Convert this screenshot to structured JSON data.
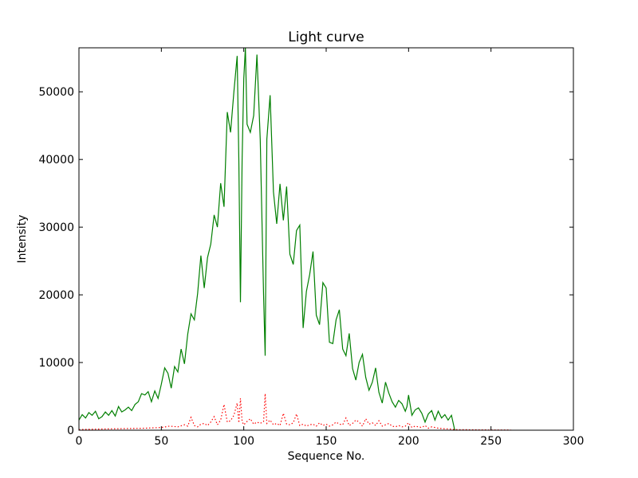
{
  "chart_data": {
    "type": "line",
    "title": "Light curve",
    "xlabel": "Sequence No.",
    "ylabel": "Intensity",
    "xlim": [
      0,
      300
    ],
    "ylim": [
      0,
      56500
    ],
    "xticks": [
      "0",
      "50",
      "100",
      "150",
      "200",
      "250",
      "300"
    ],
    "yticks": [
      "0",
      "10000",
      "20000",
      "30000",
      "40000",
      "50000"
    ],
    "grid": false,
    "legend": "none",
    "series": [
      {
        "color": "#007f00",
        "style": "solid",
        "x": [
          0,
          2,
          4,
          6,
          8,
          10,
          12,
          14,
          16,
          18,
          20,
          22,
          24,
          26,
          28,
          30,
          32,
          34,
          36,
          38,
          40,
          42,
          44,
          46,
          48,
          50,
          52,
          54,
          56,
          58,
          60,
          62,
          64,
          66,
          68,
          70,
          72,
          74,
          76,
          78,
          80,
          82,
          84,
          86,
          88,
          90,
          92,
          94,
          96,
          97,
          98,
          99,
          100,
          101,
          102,
          104,
          106,
          108,
          110,
          112,
          113,
          114,
          116,
          118,
          120,
          122,
          124,
          126,
          128,
          130,
          132,
          134,
          136,
          138,
          140,
          142,
          144,
          146,
          148,
          150,
          152,
          154,
          156,
          158,
          160,
          162,
          164,
          166,
          168,
          170,
          172,
          174,
          176,
          178,
          180,
          182,
          184,
          186,
          188,
          190,
          192,
          194,
          196,
          198,
          199,
          200,
          202,
          204,
          206,
          208,
          210,
          212,
          214,
          216,
          218,
          220,
          222,
          224,
          226,
          228
        ],
        "y": [
          1500,
          2300,
          1800,
          2600,
          2200,
          2800,
          1700,
          2000,
          2700,
          2200,
          2900,
          2100,
          3500,
          2700,
          3000,
          3400,
          2900,
          3800,
          4200,
          5400,
          5200,
          5700,
          4200,
          5800,
          4700,
          6800,
          9200,
          8400,
          6200,
          9400,
          8600,
          12000,
          9800,
          14200,
          17200,
          16300,
          20200,
          25800,
          21000,
          25500,
          27500,
          31800,
          30000,
          36500,
          33000,
          47000,
          44000,
          50000,
          55300,
          39800,
          18900,
          40000,
          52000,
          56500,
          45200,
          44000,
          46500,
          55500,
          43000,
          20000,
          11000,
          43000,
          49500,
          35200,
          30500,
          36400,
          31000,
          36000,
          26000,
          24500,
          29500,
          30300,
          15100,
          20500,
          23000,
          26400,
          17000,
          15600,
          21800,
          21000,
          13000,
          12800,
          16300,
          17800,
          12000,
          11000,
          14300,
          9100,
          7400,
          10000,
          11200,
          7800,
          5900,
          7100,
          9200,
          5600,
          4000,
          7100,
          5500,
          4200,
          3400,
          4400,
          3900,
          2800,
          3500,
          5200,
          2200,
          3000,
          3300,
          2500,
          1200,
          2400,
          2900,
          1500,
          2800,
          1800,
          2300,
          1500,
          2200,
          0
        ]
      },
      {
        "color": "#ff0000",
        "style": "dotted",
        "x": [
          0,
          10,
          20,
          30,
          40,
          50,
          55,
          60,
          64,
          66,
          68,
          70,
          72,
          74,
          76,
          78,
          80,
          82,
          84,
          86,
          88,
          90,
          92,
          94,
          96,
          97,
          98,
          99,
          100,
          102,
          104,
          106,
          108,
          110,
          112,
          113,
          114,
          116,
          118,
          120,
          122,
          124,
          126,
          128,
          130,
          132,
          134,
          136,
          138,
          140,
          142,
          144,
          146,
          148,
          150,
          152,
          154,
          156,
          158,
          160,
          162,
          164,
          166,
          168,
          170,
          172,
          174,
          176,
          178,
          180,
          182,
          184,
          186,
          188,
          190,
          192,
          194,
          196,
          198,
          200,
          202,
          204,
          206,
          208,
          210,
          212,
          214,
          216,
          218,
          220,
          222,
          224,
          226,
          228,
          230,
          240,
          250,
          262
        ],
        "y": [
          100,
          150,
          200,
          250,
          300,
          400,
          600,
          500,
          800,
          600,
          1900,
          700,
          500,
          900,
          1000,
          700,
          1200,
          2000,
          800,
          1500,
          3800,
          1200,
          1400,
          2200,
          4000,
          1100,
          4700,
          1300,
          800,
          1300,
          1700,
          900,
          1200,
          1000,
          1300,
          5400,
          1000,
          1500,
          800,
          1000,
          700,
          2500,
          900,
          800,
          1100,
          2400,
          700,
          900,
          600,
          800,
          900,
          600,
          1100,
          700,
          900,
          600,
          800,
          1200,
          900,
          800,
          1800,
          700,
          1000,
          1500,
          1200,
          600,
          1700,
          900,
          1100,
          700,
          1400,
          600,
          800,
          1000,
          600,
          500,
          700,
          500,
          600,
          1100,
          400,
          600,
          500,
          400,
          700,
          300,
          500,
          400,
          300,
          250,
          200,
          200,
          150,
          100,
          80,
          60,
          40,
          30
        ]
      }
    ]
  }
}
